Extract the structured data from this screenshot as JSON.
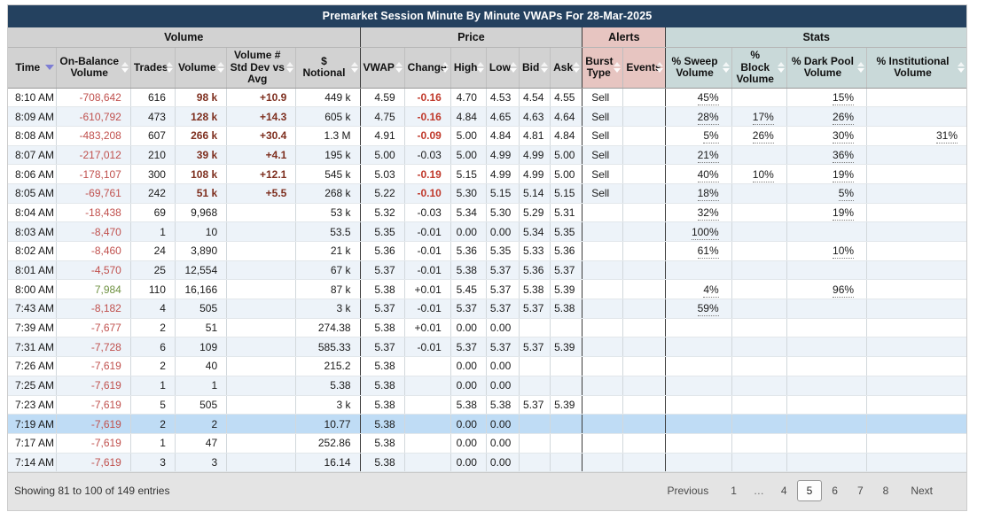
{
  "title": "Premarket Session Minute By Minute VWAPs For 28-Mar-2025",
  "colors": {
    "title_bar": "#24415f",
    "header_gray": "#d2d2d2",
    "alerts_header": "#e7c5c1",
    "stats_header": "#c9d9d9",
    "row_alt": "#edf3f9",
    "row_selected": "#bfdcf5",
    "negative_value": "#c0504d",
    "positive_value": "#6f9242",
    "volume_emphasis": "#7e2f1f",
    "change_emphasis": "#c0392b"
  },
  "table": {
    "groups": [
      {
        "id": "volume",
        "label": "Volume",
        "col_span": 6
      },
      {
        "id": "price",
        "label": "Price",
        "col_span": 6
      },
      {
        "id": "alerts",
        "label": "Alerts",
        "col_span": 2
      },
      {
        "id": "stats",
        "label": "Stats",
        "col_span": 4
      }
    ],
    "columns": [
      {
        "id": "time",
        "label": "Time",
        "group": "volume",
        "sorted": "desc"
      },
      {
        "id": "obv",
        "label": "On-Balance Volume",
        "group": "volume"
      },
      {
        "id": "trades",
        "label": "Trades",
        "group": "volume"
      },
      {
        "id": "volume",
        "label": "Volume",
        "group": "volume"
      },
      {
        "id": "stddev",
        "label": "Volume # Std Dev vs Avg",
        "group": "volume"
      },
      {
        "id": "notional",
        "label": "$ Notional",
        "group": "volume"
      },
      {
        "id": "vwap",
        "label": "VWAP",
        "group": "price"
      },
      {
        "id": "change",
        "label": "Change",
        "group": "price"
      },
      {
        "id": "high",
        "label": "High",
        "group": "price"
      },
      {
        "id": "low",
        "label": "Low",
        "group": "price"
      },
      {
        "id": "bid",
        "label": "Bid",
        "group": "price"
      },
      {
        "id": "ask",
        "label": "Ask",
        "group": "price"
      },
      {
        "id": "burst",
        "label": "Burst Type",
        "group": "alerts"
      },
      {
        "id": "events",
        "label": "Events",
        "group": "alerts"
      },
      {
        "id": "sweep",
        "label": "% Sweep Volume",
        "group": "stats"
      },
      {
        "id": "block",
        "label": "% Block Volume",
        "group": "stats"
      },
      {
        "id": "dark",
        "label": "% Dark Pool Volume",
        "group": "stats"
      },
      {
        "id": "inst",
        "label": "% Institutional Volume",
        "group": "stats"
      }
    ],
    "rows": [
      {
        "time": "8:10 AM",
        "obv": "-708,642",
        "obv_tone": "neg",
        "trades": "616",
        "volume": "98 k",
        "vol_emph": true,
        "stddev": "+10.9",
        "notional": "449 k",
        "vwap": "4.59",
        "change": "-0.16",
        "change_emph": true,
        "high": "4.70",
        "low": "4.53",
        "bid": "4.54",
        "ask": "4.55",
        "burst": "Sell",
        "events": "",
        "sweep": "45%",
        "block": "",
        "dark": "15%",
        "inst": "",
        "selected": false
      },
      {
        "time": "8:09 AM",
        "obv": "-610,792",
        "obv_tone": "neg",
        "trades": "473",
        "volume": "128 k",
        "vol_emph": true,
        "stddev": "+14.3",
        "notional": "605 k",
        "vwap": "4.75",
        "change": "-0.16",
        "change_emph": true,
        "high": "4.84",
        "low": "4.65",
        "bid": "4.63",
        "ask": "4.64",
        "burst": "Sell",
        "events": "",
        "sweep": "28%",
        "block": "17%",
        "dark": "26%",
        "inst": "",
        "selected": false
      },
      {
        "time": "8:08 AM",
        "obv": "-483,208",
        "obv_tone": "neg",
        "trades": "607",
        "volume": "266 k",
        "vol_emph": true,
        "stddev": "+30.4",
        "notional": "1.3 M",
        "vwap": "4.91",
        "change": "-0.09",
        "change_emph": true,
        "high": "5.00",
        "low": "4.84",
        "bid": "4.81",
        "ask": "4.84",
        "burst": "Sell",
        "events": "",
        "sweep": "5%",
        "block": "26%",
        "dark": "30%",
        "inst": "31%",
        "selected": false
      },
      {
        "time": "8:07 AM",
        "obv": "-217,012",
        "obv_tone": "neg",
        "trades": "210",
        "volume": "39 k",
        "vol_emph": true,
        "stddev": "+4.1",
        "notional": "195 k",
        "vwap": "5.00",
        "change": "-0.03",
        "change_emph": false,
        "high": "5.00",
        "low": "4.99",
        "bid": "4.99",
        "ask": "5.00",
        "burst": "Sell",
        "events": "",
        "sweep": "21%",
        "block": "",
        "dark": "36%",
        "inst": "",
        "selected": false
      },
      {
        "time": "8:06 AM",
        "obv": "-178,107",
        "obv_tone": "neg",
        "trades": "300",
        "volume": "108 k",
        "vol_emph": true,
        "stddev": "+12.1",
        "notional": "545 k",
        "vwap": "5.03",
        "change": "-0.19",
        "change_emph": true,
        "high": "5.15",
        "low": "4.99",
        "bid": "4.99",
        "ask": "5.00",
        "burst": "Sell",
        "events": "",
        "sweep": "40%",
        "block": "10%",
        "dark": "19%",
        "inst": "",
        "selected": false
      },
      {
        "time": "8:05 AM",
        "obv": "-69,761",
        "obv_tone": "neg",
        "trades": "242",
        "volume": "51 k",
        "vol_emph": true,
        "stddev": "+5.5",
        "notional": "268 k",
        "vwap": "5.22",
        "change": "-0.10",
        "change_emph": true,
        "high": "5.30",
        "low": "5.15",
        "bid": "5.14",
        "ask": "5.15",
        "burst": "Sell",
        "events": "",
        "sweep": "18%",
        "block": "",
        "dark": "5%",
        "inst": "",
        "selected": false
      },
      {
        "time": "8:04 AM",
        "obv": "-18,438",
        "obv_tone": "neg",
        "trades": "69",
        "volume": "9,968",
        "vol_emph": false,
        "stddev": "",
        "notional": "53 k",
        "vwap": "5.32",
        "change": "-0.03",
        "change_emph": false,
        "high": "5.34",
        "low": "5.30",
        "bid": "5.29",
        "ask": "5.31",
        "burst": "",
        "events": "",
        "sweep": "32%",
        "block": "",
        "dark": "19%",
        "inst": "",
        "selected": false
      },
      {
        "time": "8:03 AM",
        "obv": "-8,470",
        "obv_tone": "neg",
        "trades": "1",
        "volume": "10",
        "vol_emph": false,
        "stddev": "",
        "notional": "53.5",
        "vwap": "5.35",
        "change": "-0.01",
        "change_emph": false,
        "high": "0.00",
        "low": "0.00",
        "bid": "5.34",
        "ask": "5.35",
        "burst": "",
        "events": "",
        "sweep": "100%",
        "block": "",
        "dark": "",
        "inst": "",
        "selected": false
      },
      {
        "time": "8:02 AM",
        "obv": "-8,460",
        "obv_tone": "neg",
        "trades": "24",
        "volume": "3,890",
        "vol_emph": false,
        "stddev": "",
        "notional": "21 k",
        "vwap": "5.36",
        "change": "-0.01",
        "change_emph": false,
        "high": "5.36",
        "low": "5.35",
        "bid": "5.33",
        "ask": "5.36",
        "burst": "",
        "events": "",
        "sweep": "61%",
        "block": "",
        "dark": "10%",
        "inst": "",
        "selected": false
      },
      {
        "time": "8:01 AM",
        "obv": "-4,570",
        "obv_tone": "neg",
        "trades": "25",
        "volume": "12,554",
        "vol_emph": false,
        "stddev": "",
        "notional": "67 k",
        "vwap": "5.37",
        "change": "-0.01",
        "change_emph": false,
        "high": "5.38",
        "low": "5.37",
        "bid": "5.36",
        "ask": "5.37",
        "burst": "",
        "events": "",
        "sweep": "",
        "block": "",
        "dark": "",
        "inst": "",
        "selected": false
      },
      {
        "time": "8:00 AM",
        "obv": "7,984",
        "obv_tone": "pos",
        "trades": "110",
        "volume": "16,166",
        "vol_emph": false,
        "stddev": "",
        "notional": "87 k",
        "vwap": "5.38",
        "change": "+0.01",
        "change_emph": false,
        "high": "5.45",
        "low": "5.37",
        "bid": "5.38",
        "ask": "5.39",
        "burst": "",
        "events": "",
        "sweep": "4%",
        "block": "",
        "dark": "96%",
        "inst": "",
        "selected": false
      },
      {
        "time": "7:43 AM",
        "obv": "-8,182",
        "obv_tone": "neg",
        "trades": "4",
        "volume": "505",
        "vol_emph": false,
        "stddev": "",
        "notional": "3 k",
        "vwap": "5.37",
        "change": "-0.01",
        "change_emph": false,
        "high": "5.37",
        "low": "5.37",
        "bid": "5.37",
        "ask": "5.38",
        "burst": "",
        "events": "",
        "sweep": "59%",
        "block": "",
        "dark": "",
        "inst": "",
        "selected": false
      },
      {
        "time": "7:39 AM",
        "obv": "-7,677",
        "obv_tone": "neg",
        "trades": "2",
        "volume": "51",
        "vol_emph": false,
        "stddev": "",
        "notional": "274.38",
        "vwap": "5.38",
        "change": "+0.01",
        "change_emph": false,
        "high": "0.00",
        "low": "0.00",
        "bid": "",
        "ask": "",
        "burst": "",
        "events": "",
        "sweep": "",
        "block": "",
        "dark": "",
        "inst": "",
        "selected": false
      },
      {
        "time": "7:31 AM",
        "obv": "-7,728",
        "obv_tone": "neg",
        "trades": "6",
        "volume": "109",
        "vol_emph": false,
        "stddev": "",
        "notional": "585.33",
        "vwap": "5.37",
        "change": "-0.01",
        "change_emph": false,
        "high": "5.37",
        "low": "5.37",
        "bid": "5.37",
        "ask": "5.39",
        "burst": "",
        "events": "",
        "sweep": "",
        "block": "",
        "dark": "",
        "inst": "",
        "selected": false
      },
      {
        "time": "7:26 AM",
        "obv": "-7,619",
        "obv_tone": "neg",
        "trades": "2",
        "volume": "40",
        "vol_emph": false,
        "stddev": "",
        "notional": "215.2",
        "vwap": "5.38",
        "change": "",
        "change_emph": false,
        "high": "0.00",
        "low": "0.00",
        "bid": "",
        "ask": "",
        "burst": "",
        "events": "",
        "sweep": "",
        "block": "",
        "dark": "",
        "inst": "",
        "selected": false
      },
      {
        "time": "7:25 AM",
        "obv": "-7,619",
        "obv_tone": "neg",
        "trades": "1",
        "volume": "1",
        "vol_emph": false,
        "stddev": "",
        "notional": "5.38",
        "vwap": "5.38",
        "change": "",
        "change_emph": false,
        "high": "0.00",
        "low": "0.00",
        "bid": "",
        "ask": "",
        "burst": "",
        "events": "",
        "sweep": "",
        "block": "",
        "dark": "",
        "inst": "",
        "selected": false
      },
      {
        "time": "7:23 AM",
        "obv": "-7,619",
        "obv_tone": "neg",
        "trades": "5",
        "volume": "505",
        "vol_emph": false,
        "stddev": "",
        "notional": "3 k",
        "vwap": "5.38",
        "change": "",
        "change_emph": false,
        "high": "5.38",
        "low": "5.38",
        "bid": "5.37",
        "ask": "5.39",
        "burst": "",
        "events": "",
        "sweep": "",
        "block": "",
        "dark": "",
        "inst": "",
        "selected": false
      },
      {
        "time": "7:19 AM",
        "obv": "-7,619",
        "obv_tone": "neg",
        "trades": "2",
        "volume": "2",
        "vol_emph": false,
        "stddev": "",
        "notional": "10.77",
        "vwap": "5.38",
        "change": "",
        "change_emph": false,
        "high": "0.00",
        "low": "0.00",
        "bid": "",
        "ask": "",
        "burst": "",
        "events": "",
        "sweep": "",
        "block": "",
        "dark": "",
        "inst": "",
        "selected": true
      },
      {
        "time": "7:17 AM",
        "obv": "-7,619",
        "obv_tone": "neg",
        "trades": "1",
        "volume": "47",
        "vol_emph": false,
        "stddev": "",
        "notional": "252.86",
        "vwap": "5.38",
        "change": "",
        "change_emph": false,
        "high": "0.00",
        "low": "0.00",
        "bid": "",
        "ask": "",
        "burst": "",
        "events": "",
        "sweep": "",
        "block": "",
        "dark": "",
        "inst": "",
        "selected": false
      },
      {
        "time": "7:14 AM",
        "obv": "-7,619",
        "obv_tone": "neg",
        "trades": "3",
        "volume": "3",
        "vol_emph": false,
        "stddev": "",
        "notional": "16.14",
        "vwap": "5.38",
        "change": "",
        "change_emph": false,
        "high": "0.00",
        "low": "0.00",
        "bid": "",
        "ask": "",
        "burst": "",
        "events": "",
        "sweep": "",
        "block": "",
        "dark": "",
        "inst": "",
        "selected": false
      }
    ]
  },
  "footer": {
    "showing": "Showing 81 to 100 of 149 entries",
    "pagination": {
      "previous": "Previous",
      "pages": [
        "1",
        "…",
        "4",
        "5",
        "6",
        "7",
        "8"
      ],
      "current_page": "5",
      "next": "Next"
    }
  }
}
